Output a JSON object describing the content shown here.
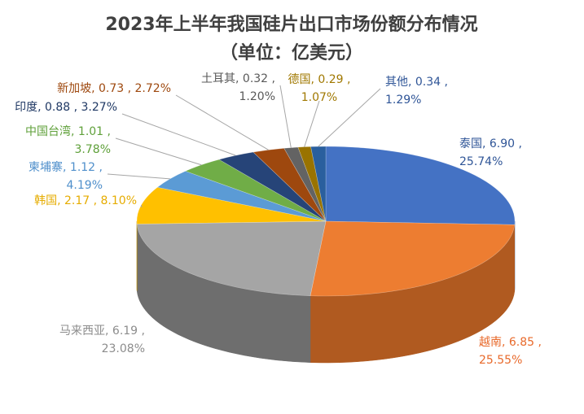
{
  "chart_data": {
    "type": "pie",
    "title_line1": "2023年上半年我国硅片出口市场份额分布情况",
    "title_line2": "（单位：亿美元）",
    "slices": [
      {
        "name": "泰国",
        "value": 6.9,
        "value_text": "6.90",
        "percent": "25.74%",
        "color": "#4472C4",
        "side": "#2E5496",
        "label_color": "#2F5597",
        "label_line1": "泰国, 6.90 ,",
        "label_line2": "25.74%"
      },
      {
        "name": "越南",
        "value": 6.85,
        "value_text": "6.85",
        "percent": "25.55%",
        "color": "#ED7D31",
        "side": "#B05A20",
        "label_color": "#E8692A",
        "label_line1": "越南, 6.85 ,",
        "label_line2": "25.55%"
      },
      {
        "name": "马来西亚",
        "value": 6.19,
        "value_text": "6.19",
        "percent": "23.08%",
        "color": "#A5A5A5",
        "side": "#6E6E6E",
        "label_color": "#8C8C8C",
        "label_line1": "马来西亚, 6.19 ,",
        "label_line2": "23.08%"
      },
      {
        "name": "韩国",
        "value": 2.17,
        "value_text": "2.17",
        "percent": "8.10%",
        "color": "#FFC000",
        "side": "#BF9000",
        "label_color": "#E6AC00",
        "label_line1": "韩国, 2.17 , 8.10%",
        "label_line2": ""
      },
      {
        "name": "柬埔寨",
        "value": 1.12,
        "value_text": "1.12",
        "percent": "4.19%",
        "color": "#5B9BD5",
        "side": "#3A73A8",
        "label_color": "#4F8FCB",
        "label_line1": "柬埔寨, 1.12 ,",
        "label_line2": "4.19%"
      },
      {
        "name": "中国台湾",
        "value": 1.01,
        "value_text": "1.01",
        "percent": "3.78%",
        "color": "#70AD47",
        "side": "#4E7F2F",
        "label_color": "#5FA03A",
        "label_line1": "中国台湾, 1.01 ,",
        "label_line2": "3.78%"
      },
      {
        "name": "印度",
        "value": 0.88,
        "value_text": "0.88",
        "percent": "3.27%",
        "color": "#264478",
        "side": "#172B4E",
        "label_color": "#1F3864",
        "label_line1": "印度, 0.88 , 3.27%",
        "label_line2": ""
      },
      {
        "name": "新加坡",
        "value": 0.73,
        "value_text": "0.73",
        "percent": "2.72%",
        "color": "#9E480E",
        "side": "#6B300A",
        "label_color": "#9E480E",
        "label_line1": "新加坡, 0.73 , 2.72%",
        "label_line2": ""
      },
      {
        "name": "土耳其",
        "value": 0.32,
        "value_text": "0.32",
        "percent": "1.20%",
        "color": "#636363",
        "side": "#3E3E3E",
        "label_color": "#595959",
        "label_line1": "土耳其, 0.32 ,",
        "label_line2": "1.20%"
      },
      {
        "name": "德国",
        "value": 0.29,
        "value_text": "0.29",
        "percent": "1.07%",
        "color": "#997300",
        "side": "#664D00",
        "label_color": "#A07800",
        "label_line1": "德国, 0.29 ,",
        "label_line2": "1.07%"
      },
      {
        "name": "其他",
        "value": 0.34,
        "value_text": "0.34",
        "percent": "1.29%",
        "color": "#2A5F9E",
        "side": "#1B3F69",
        "label_color": "#2F5597",
        "label_line1": "其他, 0.34 ,",
        "label_line2": "1.29%"
      }
    ]
  }
}
